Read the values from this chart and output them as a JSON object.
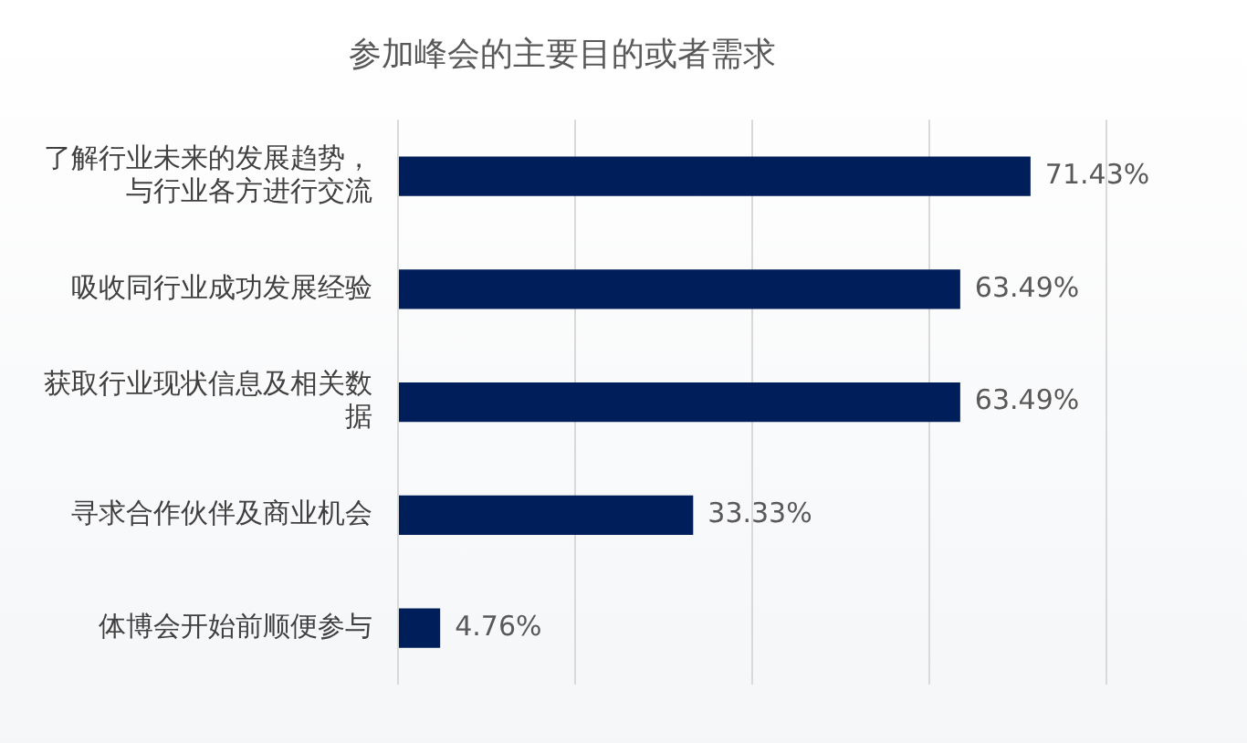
{
  "chart_data": {
    "type": "bar",
    "orientation": "horizontal",
    "title": "参加峰会的主要目的或者需求",
    "categories": [
      "了解行业未来的发展趋势，与行业各方进行交流",
      "吸收同行业成功发展经验",
      "获取行业现状信息及相关数据",
      "寻求合作伙伴及商业机会",
      "体博会开始前顺便参与"
    ],
    "values": [
      71.43,
      63.49,
      63.49,
      33.33,
      4.76
    ],
    "value_labels": [
      "71.43%",
      "63.49%",
      "63.49%",
      "33.33%",
      "4.76%"
    ],
    "color": "#001e5a",
    "xlim": [
      0,
      80
    ],
    "xticks": [
      {
        "value": 0,
        "label": null
      },
      {
        "value": 20,
        "label": null
      },
      {
        "value": 40,
        "label": null
      },
      {
        "value": 60,
        "label": null
      },
      {
        "value": 80,
        "label": null
      }
    ],
    "grid": "x",
    "tick_labels": "y",
    "legend": false
  }
}
